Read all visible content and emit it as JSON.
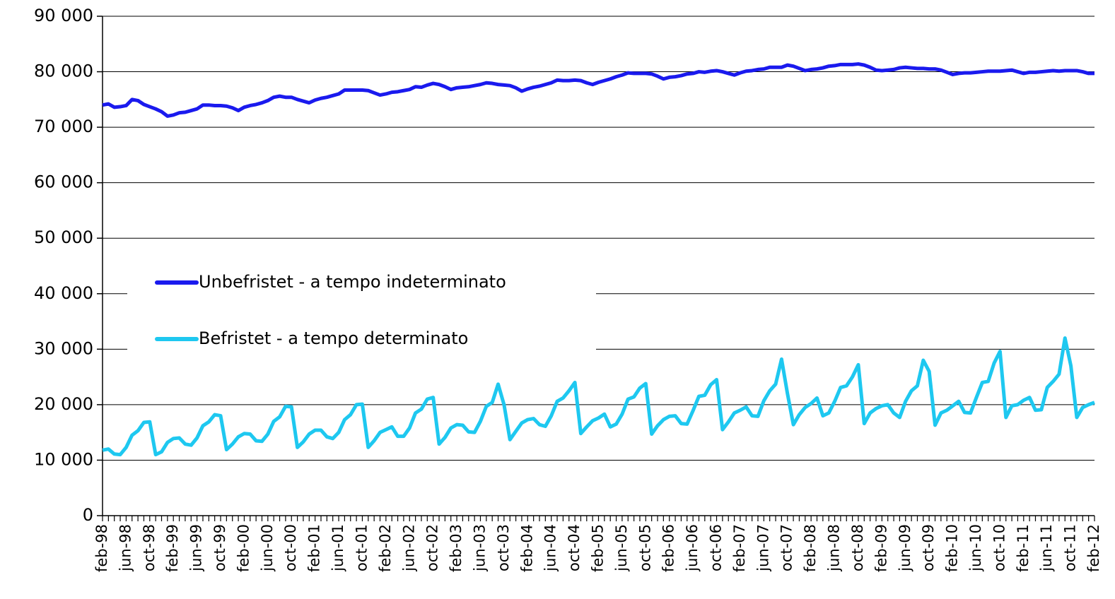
{
  "chart_data": {
    "type": "line",
    "categories": [
      "feb-98",
      null,
      null,
      null,
      "jun-98",
      null,
      null,
      null,
      "oct-98",
      null,
      null,
      null,
      "feb-99",
      null,
      null,
      null,
      "jun-99",
      null,
      null,
      null,
      "oct-99",
      null,
      null,
      null,
      "feb-00",
      null,
      null,
      null,
      "jun-00",
      null,
      null,
      null,
      "oct-00",
      null,
      null,
      null,
      "feb-01",
      null,
      null,
      null,
      "jun-01",
      null,
      null,
      null,
      "oct-01",
      null,
      null,
      null,
      "feb-02",
      null,
      null,
      null,
      "jun-02",
      null,
      null,
      null,
      "oct-02",
      null,
      null,
      null,
      "feb-03",
      null,
      null,
      null,
      "jun-03",
      null,
      null,
      null,
      "oct-03",
      null,
      null,
      null,
      "feb-04",
      null,
      null,
      null,
      "jun-04",
      null,
      null,
      null,
      "oct-04",
      null,
      null,
      null,
      "feb-05",
      null,
      null,
      null,
      "jun-05",
      null,
      null,
      null,
      "oct-05",
      null,
      null,
      null,
      "feb-06",
      null,
      null,
      null,
      "jun-06",
      null,
      null,
      null,
      "oct-06",
      null,
      null,
      null,
      "feb-07",
      null,
      null,
      null,
      "jun-07",
      null,
      null,
      null,
      "oct-07",
      null,
      null,
      null,
      "feb-08",
      null,
      null,
      null,
      "jun-08",
      null,
      null,
      null,
      "oct-08",
      null,
      null,
      null,
      "feb-09",
      null,
      null,
      null,
      "jun-09",
      null,
      null,
      null,
      "oct-09",
      null,
      null,
      null,
      "feb-10",
      null,
      null,
      null,
      "jun-10",
      null,
      null,
      null,
      "oct-10",
      null,
      null,
      null,
      "feb-11",
      null,
      null,
      null,
      "jun-11",
      null,
      null,
      null,
      "oct-11",
      null,
      null,
      null,
      "feb-12"
    ],
    "series": [
      {
        "name": "Unbefristet - a tempo indeterminato",
        "color": "#1a1aee",
        "values": [
          74000,
          74200,
          73600,
          73700,
          73900,
          75000,
          74800,
          74100,
          73700,
          73300,
          72800,
          72000,
          72200,
          72600,
          72700,
          73000,
          73300,
          74000,
          74000,
          73900,
          73900,
          73800,
          73500,
          73000,
          73600,
          73900,
          74100,
          74400,
          74800,
          75400,
          75600,
          75400,
          75400,
          75000,
          74700,
          74400,
          74900,
          75200,
          75400,
          75700,
          76000,
          76700,
          76700,
          76700,
          76700,
          76600,
          76200,
          75800,
          76000,
          76300,
          76400,
          76600,
          76800,
          77300,
          77200,
          77600,
          77900,
          77700,
          77300,
          76800,
          77100,
          77200,
          77300,
          77500,
          77700,
          78000,
          77900,
          77700,
          77600,
          77500,
          77100,
          76500,
          76900,
          77200,
          77400,
          77700,
          78000,
          78500,
          78400,
          78400,
          78500,
          78400,
          78000,
          77700,
          78100,
          78400,
          78700,
          79100,
          79400,
          79800,
          79700,
          79700,
          79700,
          79600,
          79200,
          78700,
          79000,
          79100,
          79300,
          79600,
          79700,
          80000,
          79900,
          80100,
          80200,
          80000,
          79700,
          79400,
          79800,
          80100,
          80200,
          80400,
          80500,
          80800,
          80800,
          80800,
          81200,
          81000,
          80600,
          80200,
          80400,
          80500,
          80700,
          81000,
          81100,
          81300,
          81300,
          81300,
          81400,
          81200,
          80800,
          80300,
          80200,
          80300,
          80400,
          80700,
          80800,
          80700,
          80600,
          80600,
          80500,
          80500,
          80300,
          79900,
          79500,
          79700,
          79800,
          79800,
          79900,
          80000,
          80100,
          80100,
          80100,
          80200,
          80300,
          80000,
          79700,
          79900,
          79900,
          80000,
          80100,
          80200,
          80100,
          80200,
          80200,
          80200,
          80000,
          79700,
          79700
        ]
      },
      {
        "name": "Befristet - a tempo determinato",
        "color": "#1ec8f0",
        "values": [
          11800,
          12000,
          11100,
          11000,
          12300,
          14500,
          15300,
          16800,
          16900,
          11000,
          11500,
          13200,
          13900,
          14000,
          12900,
          12700,
          14000,
          16200,
          16900,
          18200,
          18000,
          11900,
          12900,
          14200,
          14800,
          14700,
          13500,
          13400,
          14700,
          17000,
          17800,
          19700,
          19600,
          12300,
          13300,
          14700,
          15400,
          15400,
          14200,
          13900,
          15000,
          17300,
          18200,
          20000,
          20100,
          12300,
          13500,
          15000,
          15500,
          16000,
          14300,
          14300,
          15800,
          18500,
          19200,
          21000,
          21300,
          12900,
          14100,
          15800,
          16400,
          16300,
          15100,
          15000,
          17000,
          19700,
          20400,
          23700,
          20000,
          13700,
          15200,
          16700,
          17300,
          17500,
          16400,
          16100,
          18000,
          20600,
          21200,
          22500,
          24000,
          14800,
          16000,
          17100,
          17600,
          18300,
          16000,
          16500,
          18300,
          21000,
          21400,
          23000,
          23800,
          14700,
          16200,
          17300,
          17900,
          18000,
          16600,
          16500,
          18900,
          21500,
          21700,
          23600,
          24500,
          15500,
          16900,
          18500,
          19000,
          19600,
          18000,
          17900,
          20700,
          22500,
          23700,
          28200,
          22000,
          16400,
          18200,
          19500,
          20200,
          21200,
          18000,
          18500,
          20600,
          23100,
          23400,
          25000,
          27200,
          16600,
          18500,
          19300,
          19800,
          20000,
          18500,
          17700,
          20600,
          22500,
          23400,
          28000,
          26000,
          16300,
          18500,
          19000,
          19800,
          20600,
          18600,
          18500,
          21300,
          24000,
          24200,
          27500,
          29600,
          17700,
          19800,
          20000,
          20800,
          21300,
          19000,
          19100,
          23100,
          24200,
          25500,
          32000,
          27000,
          17700,
          19500,
          20000,
          20400
        ]
      }
    ],
    "ylim": [
      0,
      90000
    ],
    "yticks": [
      0,
      {
        "value": 10000,
        "label": "10 000"
      },
      {
        "value": 20000,
        "label": "20 000"
      },
      {
        "value": 30000,
        "label": "30 000"
      },
      {
        "value": 40000,
        "label": "40 000"
      },
      {
        "value": 50000,
        "label": "50 000"
      },
      {
        "value": 60000,
        "label": "60 000"
      },
      {
        "value": 70000,
        "label": "70 000"
      },
      {
        "value": 80000,
        "label": "80 000"
      },
      {
        "value": 90000,
        "label": "90 000"
      }
    ],
    "grid": true
  }
}
